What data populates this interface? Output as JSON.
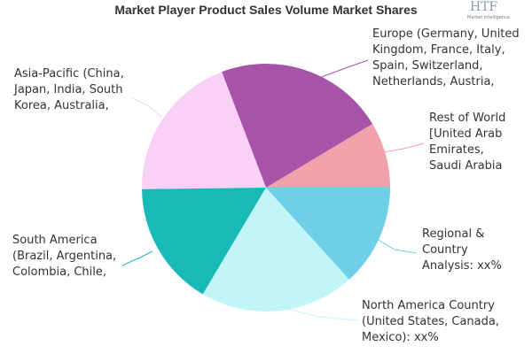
{
  "chart_data": {
    "type": "pie",
    "title": "Market Player Product Sales Volume Market Shares",
    "categories": [
      "Rest of World [United Arab Emirates, Saudi Arabia",
      "Europe (Germany, United Kingdom, France, Italy, Spain, Switzerland, Netherlands, Austria,",
      "Asia-Pacific (China, Japan, India, South Korea, Australia,",
      "South America (Brazil, Argentina, Colombia, Chile,",
      "North America Country (United States, Canada, Mexico): xx%",
      "Regional & Country Analysis: xx%"
    ],
    "values": [
      8.6,
      22.2,
      19.4,
      16.3,
      20.2,
      13.3
    ],
    "colors": [
      "#f0a1aa",
      "#a653a8",
      "#f9d1f6",
      "#17bab6",
      "#c2f5f7",
      "#6fcfe6"
    ]
  },
  "logo": {
    "mark": "HTF",
    "text": "Market Intelligence"
  }
}
